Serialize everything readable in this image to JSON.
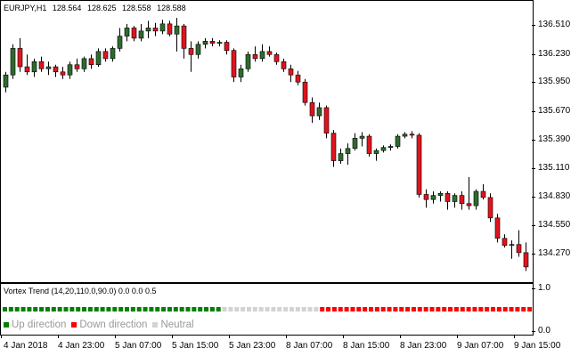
{
  "symbol": {
    "pair": "EURJPY,H1",
    "open": "128.564",
    "high": "128.625",
    "low": "128.558",
    "close": "128.588"
  },
  "price_axis": [
    "136.510",
    "136.230",
    "135.950",
    "135.670",
    "135.390",
    "135.110",
    "134.830",
    "134.550",
    "134.270"
  ],
  "indicator": {
    "title": "Vortex Trend (14,20,110.0,90.0) 0.0 0.0 0.5",
    "axis_top": "1.0",
    "axis_bottom": "0.0",
    "legend": [
      {
        "label": "Up direction",
        "color": "#008000"
      },
      {
        "label": "Down direction",
        "color": "#ff0000"
      },
      {
        "label": "Neutral",
        "color": "#d3d3d3"
      }
    ],
    "segments": [
      {
        "state": "up",
        "count": 36
      },
      {
        "state": "neutral",
        "count": 16
      },
      {
        "state": "down",
        "count": 35
      }
    ]
  },
  "time_axis": [
    "4 Jan 2018",
    "4 Jan 23:00",
    "5 Jan 07:00",
    "5 Jan 15:00",
    "5 Jan 23:00",
    "8 Jan 07:00",
    "8 Jan 15:00",
    "8 Jan 23:00",
    "9 Jan 07:00",
    "9 Jan 15:00"
  ],
  "colors": {
    "bull": "#2e6b2e",
    "bear": "#e0141e",
    "wick": "#000000"
  },
  "candles": [
    {
      "o": 135.9,
      "h": 136.05,
      "l": 135.85,
      "c": 136.02
    },
    {
      "o": 136.02,
      "h": 136.32,
      "l": 135.98,
      "c": 136.28
    },
    {
      "o": 136.28,
      "h": 136.38,
      "l": 136.05,
      "c": 136.1
    },
    {
      "o": 136.1,
      "h": 136.22,
      "l": 136.02,
      "c": 136.05
    },
    {
      "o": 136.05,
      "h": 136.18,
      "l": 136.0,
      "c": 136.15
    },
    {
      "o": 136.15,
      "h": 136.2,
      "l": 136.05,
      "c": 136.08
    },
    {
      "o": 136.08,
      "h": 136.15,
      "l": 136.02,
      "c": 136.1
    },
    {
      "o": 136.1,
      "h": 136.12,
      "l": 136.0,
      "c": 136.05
    },
    {
      "o": 136.05,
      "h": 136.1,
      "l": 135.98,
      "c": 136.02
    },
    {
      "o": 136.02,
      "h": 136.15,
      "l": 135.98,
      "c": 136.12
    },
    {
      "o": 136.12,
      "h": 136.18,
      "l": 136.05,
      "c": 136.08
    },
    {
      "o": 136.08,
      "h": 136.2,
      "l": 136.05,
      "c": 136.18
    },
    {
      "o": 136.18,
      "h": 136.22,
      "l": 136.08,
      "c": 136.12
    },
    {
      "o": 136.12,
      "h": 136.28,
      "l": 136.1,
      "c": 136.25
    },
    {
      "o": 136.25,
      "h": 136.28,
      "l": 136.15,
      "c": 136.18
    },
    {
      "o": 136.18,
      "h": 136.3,
      "l": 136.15,
      "c": 136.28
    },
    {
      "o": 136.28,
      "h": 136.48,
      "l": 136.25,
      "c": 136.4
    },
    {
      "o": 136.4,
      "h": 136.52,
      "l": 136.35,
      "c": 136.48
    },
    {
      "o": 136.48,
      "h": 136.5,
      "l": 136.35,
      "c": 136.38
    },
    {
      "o": 136.38,
      "h": 136.52,
      "l": 136.35,
      "c": 136.45
    },
    {
      "o": 136.45,
      "h": 136.55,
      "l": 136.38,
      "c": 136.48
    },
    {
      "o": 136.48,
      "h": 136.53,
      "l": 136.4,
      "c": 136.45
    },
    {
      "o": 136.45,
      "h": 136.56,
      "l": 136.42,
      "c": 136.52
    },
    {
      "o": 136.52,
      "h": 136.55,
      "l": 136.4,
      "c": 136.42
    },
    {
      "o": 136.42,
      "h": 136.58,
      "l": 136.25,
      "c": 136.5
    },
    {
      "o": 136.5,
      "h": 136.52,
      "l": 136.18,
      "c": 136.28
    },
    {
      "o": 136.28,
      "h": 136.35,
      "l": 136.05,
      "c": 136.22
    },
    {
      "o": 136.22,
      "h": 136.35,
      "l": 136.18,
      "c": 136.32
    },
    {
      "o": 136.32,
      "h": 136.38,
      "l": 136.28,
      "c": 136.35
    },
    {
      "o": 136.35,
      "h": 136.38,
      "l": 136.3,
      "c": 136.33
    },
    {
      "o": 136.33,
      "h": 136.36,
      "l": 136.3,
      "c": 136.34
    },
    {
      "o": 136.34,
      "h": 136.36,
      "l": 136.22,
      "c": 136.26
    },
    {
      "o": 136.26,
      "h": 136.28,
      "l": 135.95,
      "c": 136.0
    },
    {
      "o": 136.0,
      "h": 136.12,
      "l": 135.95,
      "c": 136.08
    },
    {
      "o": 136.08,
      "h": 136.25,
      "l": 136.05,
      "c": 136.22
    },
    {
      "o": 136.22,
      "h": 136.3,
      "l": 136.15,
      "c": 136.18
    },
    {
      "o": 136.18,
      "h": 136.32,
      "l": 136.15,
      "c": 136.25
    },
    {
      "o": 136.25,
      "h": 136.3,
      "l": 136.2,
      "c": 136.22
    },
    {
      "o": 136.22,
      "h": 136.24,
      "l": 136.12,
      "c": 136.15
    },
    {
      "o": 136.15,
      "h": 136.18,
      "l": 136.05,
      "c": 136.08
    },
    {
      "o": 136.08,
      "h": 136.12,
      "l": 135.95,
      "c": 136.02
    },
    {
      "o": 136.02,
      "h": 136.06,
      "l": 135.92,
      "c": 135.95
    },
    {
      "o": 135.95,
      "h": 135.98,
      "l": 135.72,
      "c": 135.75
    },
    {
      "o": 135.75,
      "h": 135.8,
      "l": 135.55,
      "c": 135.62
    },
    {
      "o": 135.62,
      "h": 135.75,
      "l": 135.58,
      "c": 135.7
    },
    {
      "o": 135.7,
      "h": 135.72,
      "l": 135.4,
      "c": 135.45
    },
    {
      "o": 135.45,
      "h": 135.48,
      "l": 135.12,
      "c": 135.18
    },
    {
      "o": 135.18,
      "h": 135.3,
      "l": 135.15,
      "c": 135.25
    },
    {
      "o": 135.25,
      "h": 135.35,
      "l": 135.14,
      "c": 135.3
    },
    {
      "o": 135.3,
      "h": 135.45,
      "l": 135.28,
      "c": 135.4
    },
    {
      "o": 135.4,
      "h": 135.46,
      "l": 135.32,
      "c": 135.42
    },
    {
      "o": 135.42,
      "h": 135.44,
      "l": 135.22,
      "c": 135.25
    },
    {
      "o": 135.25,
      "h": 135.3,
      "l": 135.18,
      "c": 135.28
    },
    {
      "o": 135.28,
      "h": 135.33,
      "l": 135.26,
      "c": 135.31
    },
    {
      "o": 135.31,
      "h": 135.34,
      "l": 135.28,
      "c": 135.32
    },
    {
      "o": 135.32,
      "h": 135.44,
      "l": 135.3,
      "c": 135.42
    },
    {
      "o": 135.42,
      "h": 135.46,
      "l": 135.4,
      "c": 135.44
    },
    {
      "o": 135.44,
      "h": 135.47,
      "l": 135.4,
      "c": 135.43
    },
    {
      "o": 135.43,
      "h": 135.45,
      "l": 134.82,
      "c": 134.85
    },
    {
      "o": 134.85,
      "h": 134.9,
      "l": 134.72,
      "c": 134.8
    },
    {
      "o": 134.8,
      "h": 134.88,
      "l": 134.76,
      "c": 134.84
    },
    {
      "o": 134.84,
      "h": 134.88,
      "l": 134.78,
      "c": 134.86
    },
    {
      "o": 134.86,
      "h": 134.88,
      "l": 134.7,
      "c": 134.78
    },
    {
      "o": 134.78,
      "h": 134.86,
      "l": 134.72,
      "c": 134.84
    },
    {
      "o": 134.84,
      "h": 134.88,
      "l": 134.7,
      "c": 134.76
    },
    {
      "o": 134.76,
      "h": 135.02,
      "l": 134.7,
      "c": 134.74
    },
    {
      "o": 134.74,
      "h": 134.9,
      "l": 134.7,
      "c": 134.88
    },
    {
      "o": 134.88,
      "h": 134.95,
      "l": 134.8,
      "c": 134.82
    },
    {
      "o": 134.82,
      "h": 134.86,
      "l": 134.58,
      "c": 134.62
    },
    {
      "o": 134.62,
      "h": 134.66,
      "l": 134.38,
      "c": 134.42
    },
    {
      "o": 134.42,
      "h": 134.46,
      "l": 134.33,
      "c": 134.35
    },
    {
      "o": 134.35,
      "h": 134.4,
      "l": 134.22,
      "c": 134.36
    },
    {
      "o": 134.36,
      "h": 134.5,
      "l": 134.24,
      "c": 134.28
    },
    {
      "o": 134.28,
      "h": 134.38,
      "l": 134.1,
      "c": 134.14
    }
  ]
}
